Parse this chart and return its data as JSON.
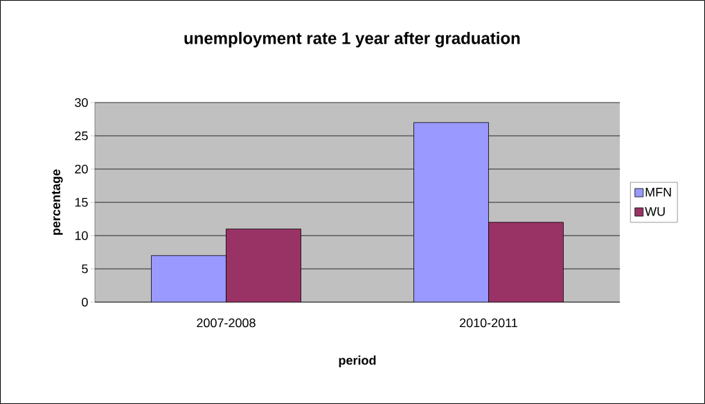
{
  "chart_data": {
    "type": "bar",
    "title": "unemployment rate 1 year after graduation",
    "xlabel": "period",
    "ylabel": "percentage",
    "categories": [
      "2007-2008",
      "2010-2011"
    ],
    "series": [
      {
        "name": "MFN",
        "color": "#9999ff",
        "values": [
          7,
          27
        ]
      },
      {
        "name": "WU",
        "color": "#993366",
        "values": [
          11,
          12
        ]
      }
    ],
    "ylim": [
      0,
      30
    ],
    "yticks": [
      0,
      5,
      10,
      15,
      20,
      25,
      30
    ],
    "grid": "y",
    "legend": "right"
  }
}
